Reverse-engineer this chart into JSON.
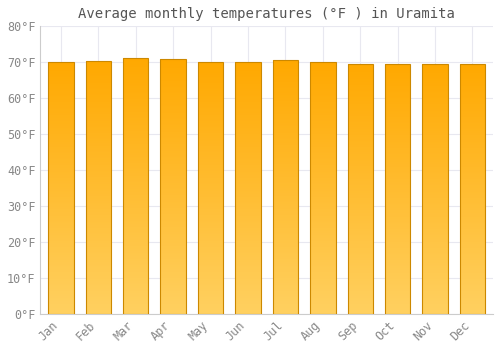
{
  "title": "Average monthly temperatures (°F ) in Uramita",
  "months": [
    "Jan",
    "Feb",
    "Mar",
    "Apr",
    "May",
    "Jun",
    "Jul",
    "Aug",
    "Sep",
    "Oct",
    "Nov",
    "Dec"
  ],
  "values": [
    70.0,
    70.3,
    71.1,
    70.9,
    70.2,
    70.0,
    70.5,
    70.0,
    69.6,
    69.4,
    69.4,
    69.4
  ],
  "bar_color_top": "#FFA800",
  "bar_color_bottom": "#FFD060",
  "bar_border_color": "#CC8800",
  "ylim": [
    0,
    80
  ],
  "ytick_step": 10,
  "background_color": "#ffffff",
  "grid_color": "#e8e8f0",
  "title_fontsize": 10,
  "tick_fontsize": 8.5,
  "tick_color": "#888888",
  "spine_color": "#cccccc",
  "figsize": [
    5.0,
    3.5
  ],
  "dpi": 100
}
